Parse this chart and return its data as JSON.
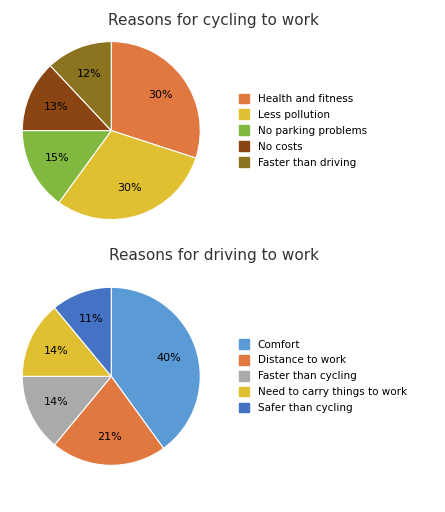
{
  "chart1": {
    "title": "Reasons for cycling to work",
    "labels": [
      "Health and fitness",
      "Less pollution",
      "No parking problems",
      "No costs",
      "Faster than driving"
    ],
    "values": [
      30,
      30,
      15,
      13,
      12
    ],
    "colors": [
      "#E07840",
      "#E0C030",
      "#80B840",
      "#8B4513",
      "#8B7320"
    ],
    "startangle": 90
  },
  "chart2": {
    "title": "Reasons for driving to work",
    "labels": [
      "Comfort",
      "Distance to work",
      "Faster than cycling",
      "Need to carry things to work",
      "Safer than cycling"
    ],
    "values": [
      40,
      21,
      14,
      14,
      11
    ],
    "colors": [
      "#5B9BD5",
      "#E07840",
      "#AAAAAA",
      "#E0C030",
      "#4472C4"
    ],
    "startangle": 90
  },
  "background_color": "#FFFFFF",
  "title_fontsize": 11,
  "pct_fontsize": 8,
  "legend_fontsize": 7.5
}
